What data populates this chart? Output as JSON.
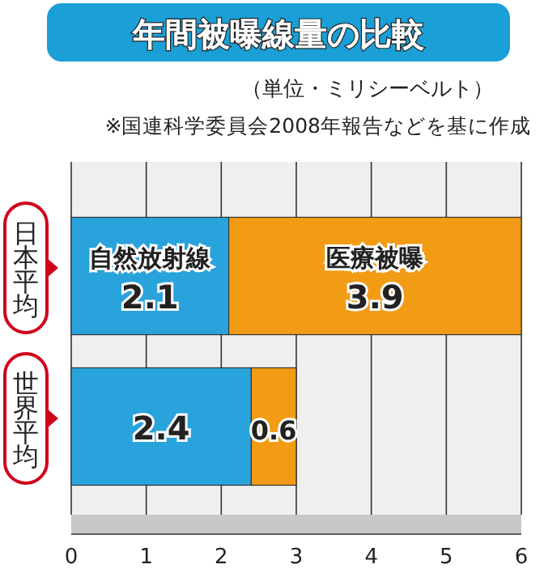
{
  "chart_data": {
    "type": "bar",
    "title": "年間被曝線量の比較",
    "subtitle": "（単位・ミリシーベルト）",
    "annotations": [
      "※国連科学委員会2008年報告などを基に作成"
    ],
    "categories": [
      "日本平均",
      "世界平均"
    ],
    "orientation": "horizontal",
    "stacked": true,
    "series": [
      {
        "name": "自然放射線",
        "color": "#29a3dc",
        "values": [
          2.1,
          2.4
        ]
      },
      {
        "name": "医療被曝",
        "color": "#f29b14",
        "values": [
          3.9,
          0.6
        ]
      }
    ],
    "xlim": [
      0,
      6
    ],
    "xticks": [
      0,
      1,
      2,
      3,
      4,
      5,
      6
    ],
    "grid": "x",
    "data_labels": true
  }
}
